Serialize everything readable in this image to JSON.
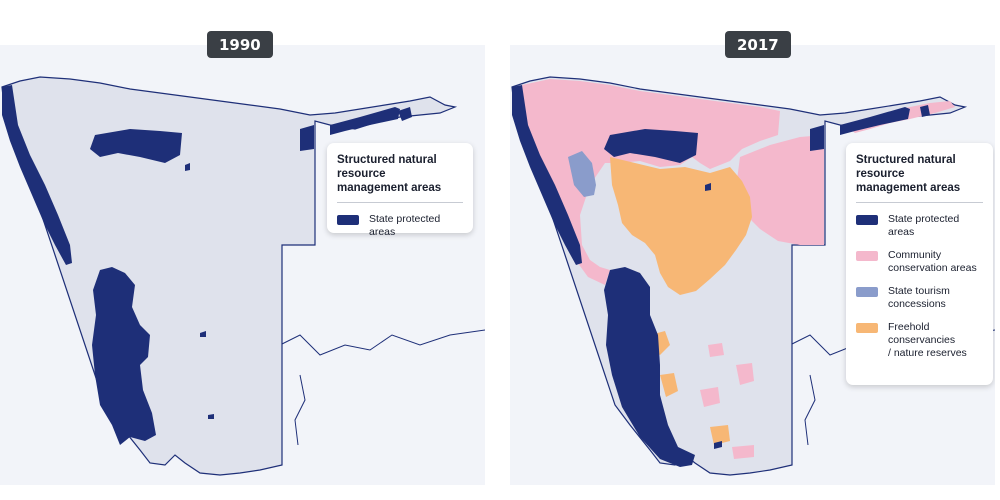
{
  "panels": [
    {
      "year": "1990",
      "legend": {
        "title": "Structured natural resource\nmanagement areas",
        "items": [
          {
            "label": "State protected areas",
            "color": "#1e2f78"
          }
        ]
      }
    },
    {
      "year": "2017",
      "legend": {
        "title": "Structured natural resource\nmanagement areas",
        "items": [
          {
            "label": "State protected areas",
            "color": "#1e2f78"
          },
          {
            "label": "Community\nconservation areas",
            "color": "#f4b8cc"
          },
          {
            "label": "State tourism\nconcessions",
            "color": "#8a9ccb"
          },
          {
            "label": "Freehold conservancies\n/ nature reserves",
            "color": "#f7b775"
          }
        ]
      }
    }
  ],
  "colors": {
    "land": "#dfe2ec",
    "border": "#1e2f78",
    "panel_bg": "#f2f4f9",
    "badge_bg": "#3a3f45"
  }
}
